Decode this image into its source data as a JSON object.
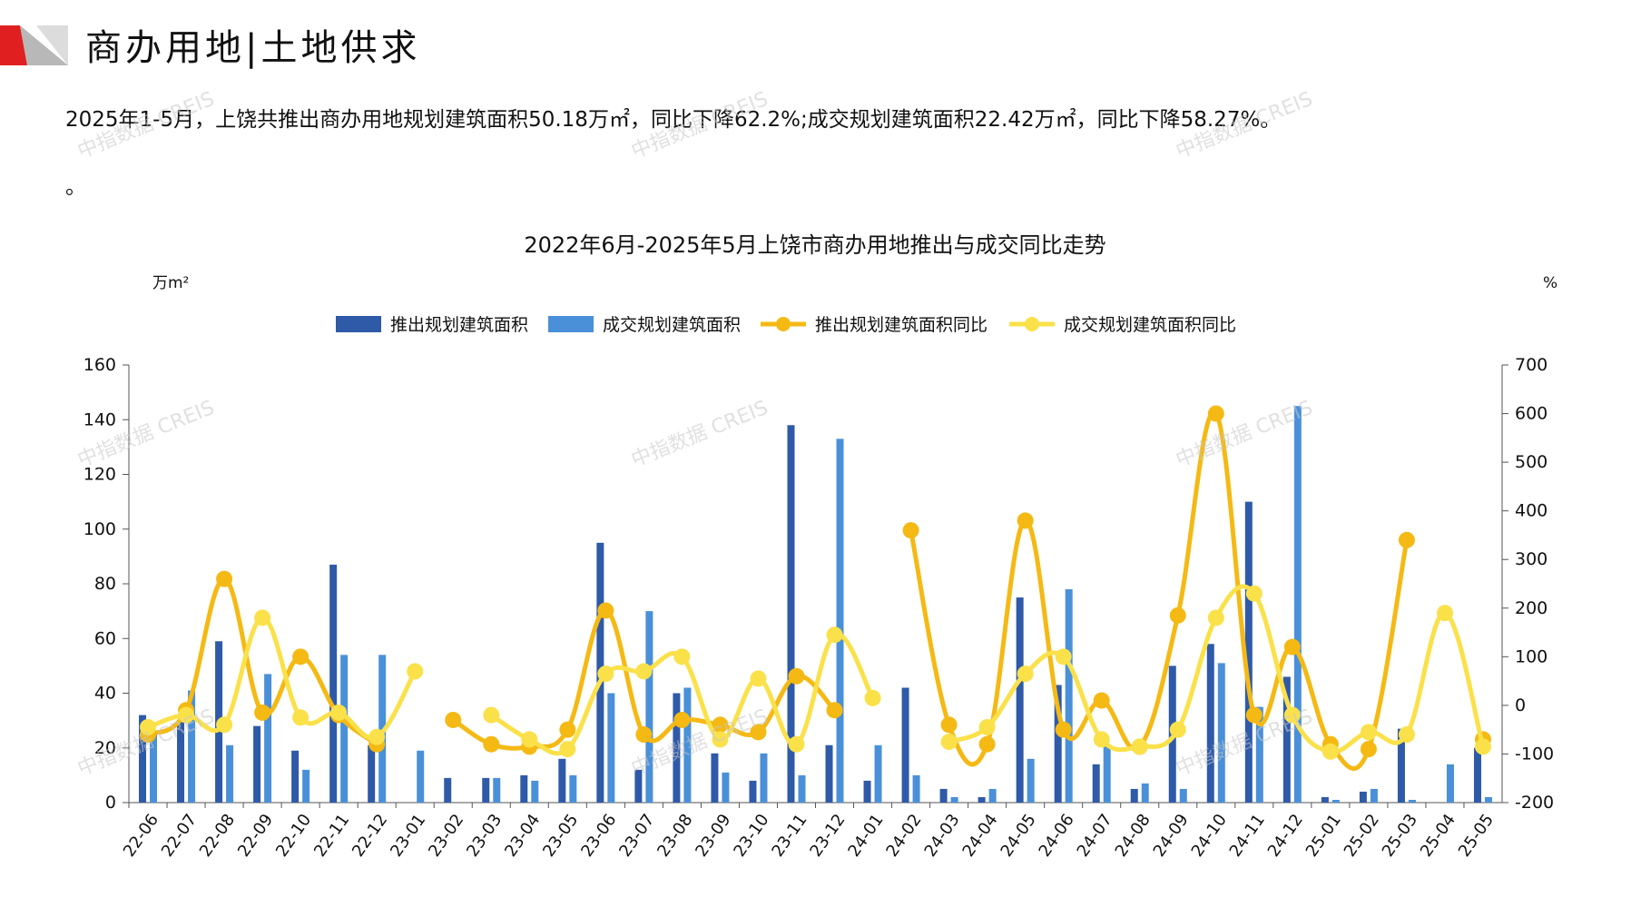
{
  "header": {
    "title": "商办用地|土地供求"
  },
  "summary": {
    "text": "2025年1-5月，上饶共推出商办用地规划建筑面积50.18万㎡，同比下降62.2%;成交规划建筑面积22.42万㎡，同比下降58.27%。",
    "trailing": "。"
  },
  "watermark": {
    "text": "中指数据 CREIS"
  },
  "colors": {
    "supply_bar": "#2e5aa8",
    "deal_bar": "#4a90d9",
    "supply_line": "#f5b914",
    "deal_line": "#fae14a",
    "accent_red": "#e02020"
  },
  "chart_data": {
    "type": "bar",
    "title": "2022年6月-2025年5月上饶市商办用地推出与成交同比走势",
    "ylabel_left": "万m²",
    "ylabel_right": "%",
    "ylim_left": [
      0,
      160
    ],
    "ylim_right": [
      -200,
      700
    ],
    "yticks_left": [
      0,
      20,
      40,
      60,
      80,
      100,
      120,
      140,
      160
    ],
    "yticks_right": [
      -200,
      -100,
      0,
      100,
      200,
      300,
      400,
      500,
      600,
      700
    ],
    "legend_position": "top-center",
    "grid": false,
    "categories": [
      "22-06",
      "22-07",
      "22-08",
      "22-09",
      "22-10",
      "22-11",
      "22-12",
      "23-01",
      "23-02",
      "23-03",
      "23-04",
      "23-05",
      "23-06",
      "23-07",
      "23-08",
      "23-09",
      "23-10",
      "23-11",
      "23-12",
      "24-01",
      "24-02",
      "24-03",
      "24-04",
      "24-05",
      "24-06",
      "24-07",
      "24-08",
      "24-09",
      "24-10",
      "24-11",
      "24-12",
      "25-01",
      "25-02",
      "25-03",
      "25-04",
      "25-05"
    ],
    "series": [
      {
        "name": "推出规划建筑面积",
        "kind": "bar",
        "axis": "left",
        "values": [
          32,
          30,
          59,
          28,
          19,
          87,
          21,
          0,
          9,
          9,
          10,
          16,
          95,
          12,
          40,
          18,
          8,
          138,
          21,
          8,
          42,
          5,
          2,
          75,
          43,
          14,
          5,
          50,
          58,
          110,
          46,
          2,
          4,
          27,
          0,
          20
        ]
      },
      {
        "name": "成交规划建筑面积",
        "kind": "bar",
        "axis": "left",
        "values": [
          25,
          41,
          21,
          47,
          12,
          54,
          54,
          19,
          0,
          9,
          8,
          10,
          40,
          70,
          42,
          11,
          18,
          10,
          133,
          21,
          10,
          2,
          5,
          16,
          78,
          21,
          7,
          5,
          51,
          35,
          145,
          1,
          5,
          1,
          14,
          2
        ]
      },
      {
        "name": "推出规划建筑面积同比",
        "kind": "line",
        "axis": "right",
        "values": [
          -60,
          -10,
          260,
          -15,
          100,
          -20,
          -80,
          null,
          -30,
          -80,
          -85,
          -50,
          195,
          -60,
          -30,
          -40,
          -55,
          60,
          -10,
          null,
          360,
          -40,
          -80,
          380,
          -50,
          10,
          -85,
          185,
          600,
          -20,
          120,
          -80,
          -90,
          340,
          null,
          -70
        ]
      },
      {
        "name": "成交规划建筑面积同比",
        "kind": "line",
        "axis": "right",
        "values": [
          -45,
          -20,
          -40,
          180,
          -25,
          -15,
          -65,
          70,
          null,
          -20,
          -70,
          -90,
          65,
          70,
          100,
          -70,
          55,
          -80,
          145,
          15,
          null,
          -75,
          -45,
          65,
          100,
          -70,
          -85,
          -50,
          180,
          230,
          -20,
          -95,
          -55,
          -60,
          190,
          -85
        ]
      }
    ]
  }
}
